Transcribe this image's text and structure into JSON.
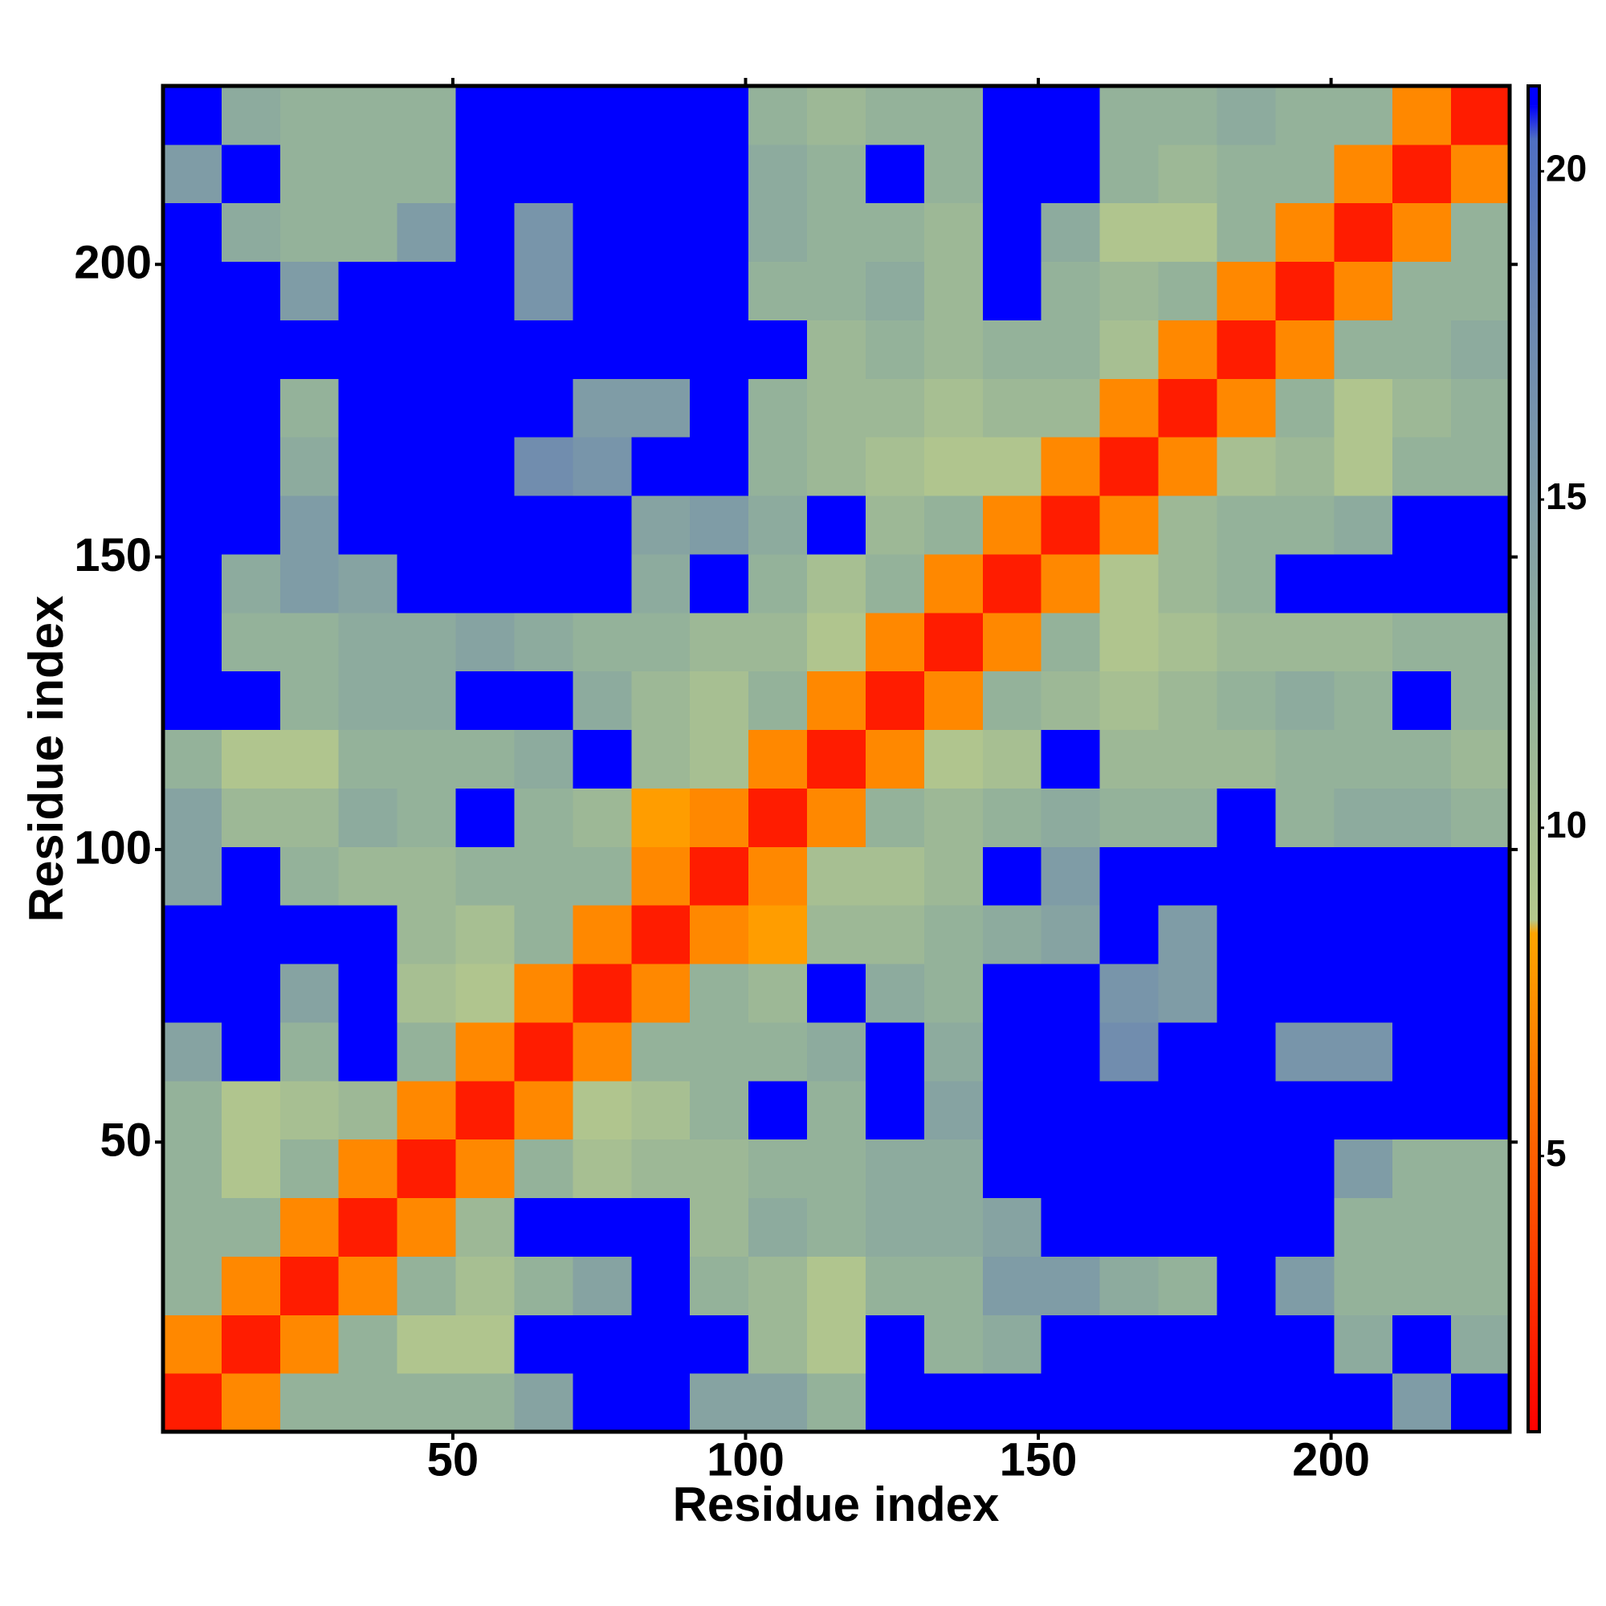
{
  "chart_data": {
    "type": "heatmap",
    "x_label": "Residue index",
    "y_label": "Residue index",
    "xlim": [
      0.5,
      230.5
    ],
    "ylim": [
      0.5,
      230.5
    ],
    "xticks": [
      50,
      100,
      150,
      200
    ],
    "yticks": [
      50,
      100,
      150,
      200
    ],
    "zlim": [
      0.8,
      21.3
    ],
    "colorbar_ticks": [
      5,
      10,
      15,
      20
    ],
    "colorscale": [
      [
        0.8,
        "#ff0000"
      ],
      [
        4,
        "#ff4a00"
      ],
      [
        8.4,
        "#ffa500"
      ],
      [
        8.6,
        "#b4c88c"
      ],
      [
        12,
        "#94b29a"
      ],
      [
        18,
        "#6a86b2"
      ],
      [
        20.5,
        "#4f6fc2"
      ],
      [
        21,
        "#0000ff"
      ]
    ],
    "z": [
      [
        2,
        7,
        12,
        12,
        12,
        12,
        14,
        21,
        21,
        14,
        14,
        12,
        21,
        21,
        21,
        21,
        21,
        21,
        21,
        21,
        21,
        15,
        21
      ],
      [
        7,
        2,
        7,
        12,
        9,
        9,
        21,
        21,
        21,
        21,
        11,
        9,
        21,
        12,
        13,
        21,
        21,
        21,
        21,
        21,
        13,
        21,
        13
      ],
      [
        12,
        7,
        2,
        7,
        12,
        10,
        12,
        14,
        21,
        12,
        11,
        9,
        12,
        12,
        15,
        15,
        13,
        12,
        21,
        15,
        12,
        12,
        12
      ],
      [
        12,
        12,
        7,
        2,
        7,
        11,
        21,
        21,
        21,
        11,
        13,
        12,
        13,
        13,
        14,
        21,
        21,
        21,
        21,
        21,
        12,
        12,
        12
      ],
      [
        12,
        9,
        12,
        7,
        2,
        7,
        12,
        10,
        11,
        11,
        12,
        12,
        13,
        13,
        21,
        21,
        21,
        21,
        21,
        21,
        15,
        12,
        12
      ],
      [
        12,
        9,
        10,
        11,
        7,
        2,
        7,
        9,
        10,
        12,
        21,
        12,
        21,
        14,
        21,
        21,
        21,
        21,
        21,
        21,
        21,
        21,
        21
      ],
      [
        14,
        21,
        12,
        21,
        12,
        7,
        2,
        7,
        12,
        12,
        12,
        13,
        21,
        13,
        21,
        21,
        17,
        21,
        21,
        16,
        16,
        21,
        21
      ],
      [
        21,
        21,
        14,
        21,
        10,
        9,
        7,
        2,
        7,
        12,
        11,
        21,
        13,
        12,
        21,
        21,
        16,
        15,
        21,
        21,
        21,
        21,
        21
      ],
      [
        21,
        21,
        21,
        21,
        11,
        10,
        12,
        7,
        2,
        7,
        8,
        11,
        11,
        12,
        13,
        14,
        21,
        15,
        21,
        21,
        21,
        21,
        21
      ],
      [
        14,
        21,
        12,
        11,
        11,
        12,
        12,
        12,
        7,
        2,
        7,
        10,
        10,
        11,
        21,
        15,
        21,
        21,
        21,
        21,
        21,
        21,
        21
      ],
      [
        14,
        11,
        11,
        13,
        12,
        21,
        12,
        11,
        8,
        7,
        2,
        7,
        12,
        11,
        12,
        13,
        12,
        12,
        21,
        12,
        13,
        13,
        12
      ],
      [
        12,
        9,
        9,
        12,
        12,
        12,
        13,
        21,
        11,
        10,
        7,
        2,
        7,
        9,
        10,
        21,
        11,
        11,
        11,
        12,
        12,
        12,
        11
      ],
      [
        21,
        21,
        12,
        13,
        13,
        21,
        21,
        13,
        11,
        10,
        12,
        7,
        2,
        7,
        12,
        11,
        10,
        11,
        12,
        13,
        12,
        21,
        12
      ],
      [
        21,
        12,
        12,
        13,
        13,
        14,
        13,
        12,
        12,
        11,
        11,
        9,
        7,
        2,
        7,
        12,
        9,
        10,
        11,
        11,
        11,
        12,
        12
      ],
      [
        21,
        13,
        15,
        14,
        21,
        21,
        21,
        21,
        13,
        21,
        12,
        10,
        12,
        7,
        2,
        7,
        9,
        11,
        12,
        21,
        21,
        21,
        21
      ],
      [
        21,
        21,
        15,
        21,
        21,
        21,
        21,
        21,
        14,
        15,
        13,
        21,
        11,
        12,
        7,
        2,
        7,
        11,
        12,
        12,
        13,
        21,
        21
      ],
      [
        21,
        21,
        13,
        21,
        21,
        21,
        17,
        16,
        21,
        21,
        12,
        11,
        10,
        9,
        9,
        7,
        2,
        7,
        10,
        11,
        9,
        12,
        12
      ],
      [
        21,
        21,
        12,
        21,
        21,
        21,
        21,
        15,
        15,
        21,
        12,
        11,
        11,
        10,
        11,
        11,
        7,
        2,
        7,
        12,
        9,
        11,
        12
      ],
      [
        21,
        21,
        21,
        21,
        21,
        21,
        21,
        21,
        21,
        21,
        21,
        11,
        12,
        11,
        12,
        12,
        10,
        7,
        2,
        7,
        12,
        12,
        13
      ],
      [
        21,
        21,
        15,
        21,
        21,
        21,
        16,
        21,
        21,
        21,
        12,
        12,
        13,
        11,
        21,
        12,
        11,
        12,
        7,
        2,
        7,
        12,
        12
      ],
      [
        21,
        13,
        12,
        12,
        15,
        21,
        16,
        21,
        21,
        21,
        13,
        12,
        12,
        11,
        21,
        13,
        9,
        9,
        12,
        7,
        2,
        7,
        12
      ],
      [
        15,
        21,
        12,
        12,
        12,
        21,
        21,
        21,
        21,
        21,
        13,
        12,
        21,
        12,
        21,
        21,
        12,
        11,
        12,
        12,
        7,
        2,
        7
      ],
      [
        21,
        13,
        12,
        12,
        12,
        21,
        21,
        21,
        21,
        21,
        12,
        11,
        12,
        12,
        21,
        21,
        12,
        12,
        13,
        12,
        12,
        7,
        2
      ]
    ]
  }
}
